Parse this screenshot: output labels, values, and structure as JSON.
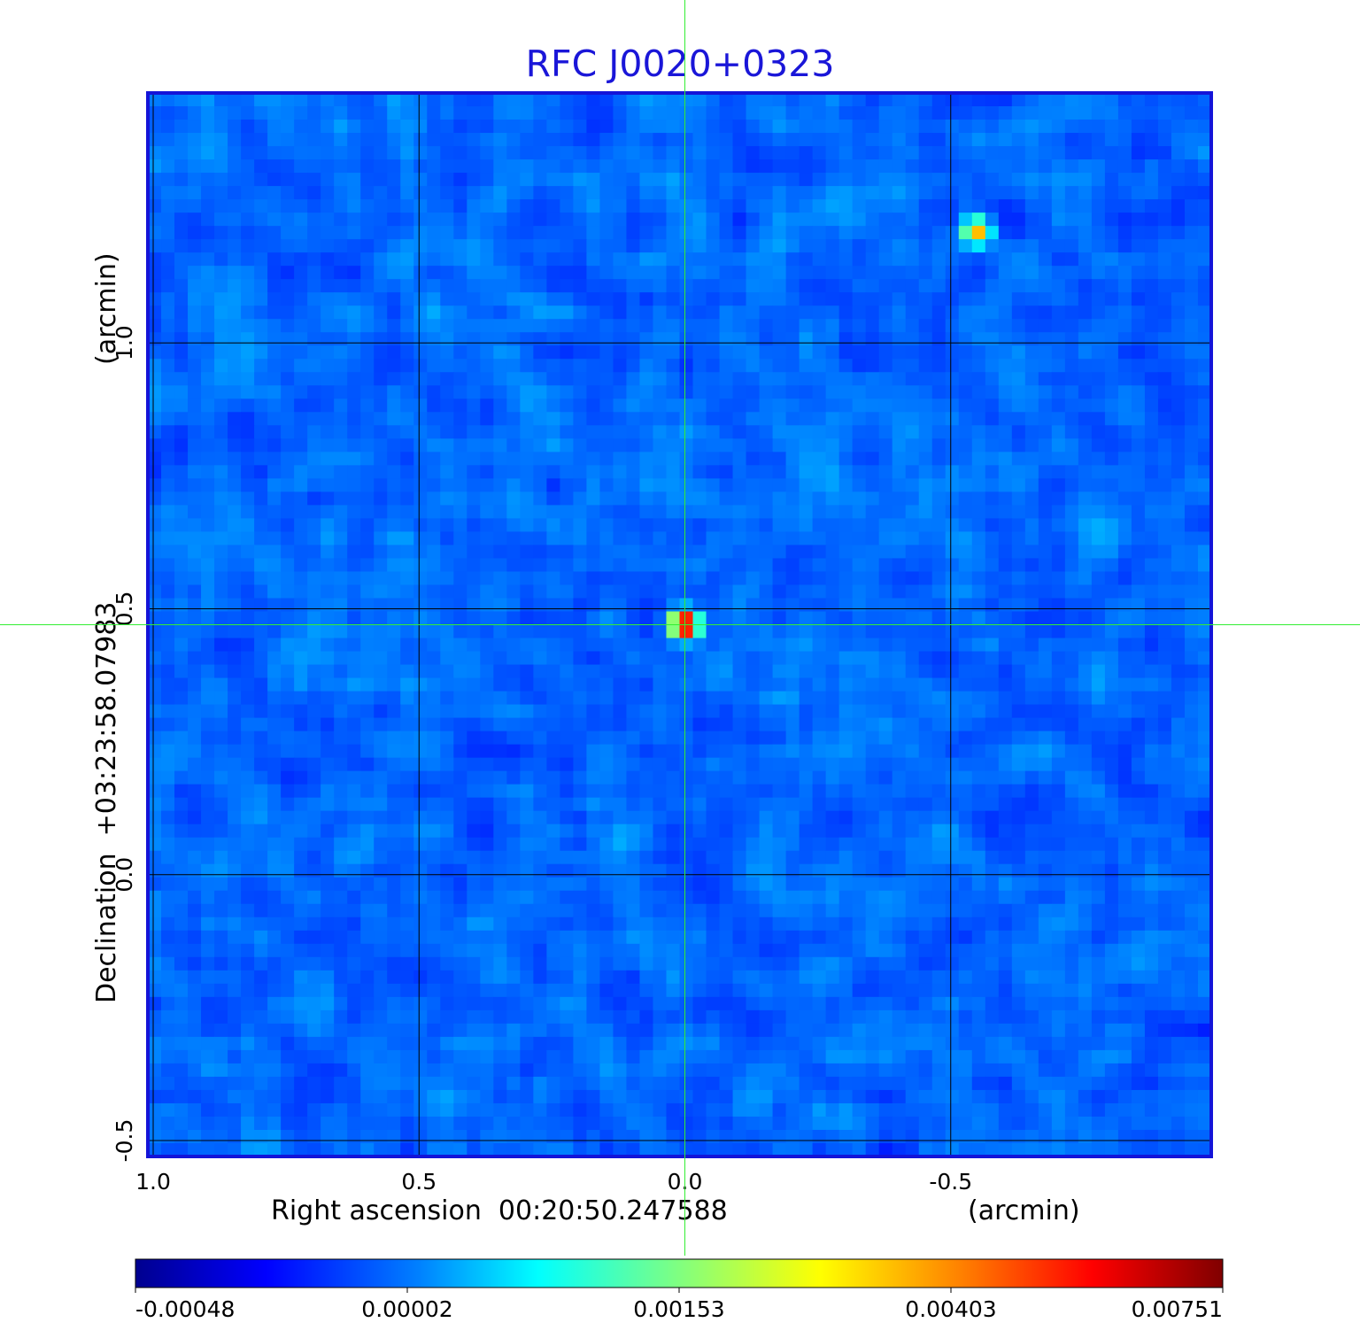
{
  "chart_data": {
    "type": "heatmap",
    "title": "RFC J0020+0323",
    "xlabel": "Right ascension  00:20:50.247588",
    "xunit": "(arcmin)",
    "ylabel": "Declination  +03:23:58.07983",
    "yunit": "(arcmin)",
    "x_ticks": [
      {
        "value": 1.0,
        "label": "1.0"
      },
      {
        "value": 0.5,
        "label": "0.5"
      },
      {
        "value": 0.0,
        "label": "0.0"
      },
      {
        "value": -0.5,
        "label": "-0.5"
      }
    ],
    "y_ticks": [
      {
        "value": -0.5,
        "label": "-0.5"
      },
      {
        "value": 0.0,
        "label": "0.0"
      },
      {
        "value": 0.5,
        "label": "0.5"
      },
      {
        "value": 1.0,
        "label": "1.0"
      }
    ],
    "xlim": [
      1.01,
      -0.99
    ],
    "ylim": [
      -0.53,
      1.47
    ],
    "grid": true,
    "colormap": "jet",
    "noise_level": 0.0009,
    "sources": [
      {
        "name": "",
        "ra_offset": 0.0,
        "dec_offset": 0.47,
        "peak": 0.00751
      },
      {
        "name": "",
        "ra_offset": -0.55,
        "dec_offset": 1.21,
        "peak": 0.0048
      }
    ],
    "crosshair": {
      "ra_offset": 0.0,
      "dec_offset": 0.47
    },
    "colorbar": {
      "ticks": [
        {
          "value": -0.00048,
          "label": "-0.00048"
        },
        {
          "value": 2e-05,
          "label": "0.00002"
        },
        {
          "value": 0.00153,
          "label": "0.00153"
        },
        {
          "value": 0.00403,
          "label": "0.00403"
        },
        {
          "value": 0.00751,
          "label": "0.00751"
        }
      ],
      "min": -0.00082,
      "max": 0.00751
    },
    "colors": {
      "title": "#1a16d8",
      "frame": "#1414d8",
      "grid": "#000000",
      "crosshair": "#33ee33"
    }
  }
}
